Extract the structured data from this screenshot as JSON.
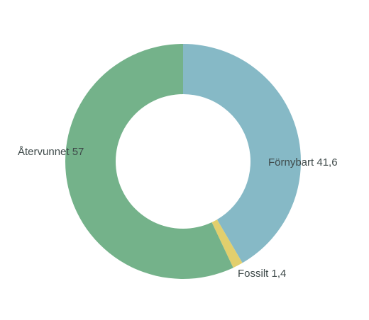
{
  "chart_data": {
    "type": "donut",
    "categories": [
      "Förnybart",
      "Fossilt",
      "Återvunnet"
    ],
    "values": [
      41.6,
      1.4,
      57
    ],
    "value_labels": [
      "41,6",
      "1,4",
      "57"
    ],
    "colors": [
      "#86b9c6",
      "#e2cf6d",
      "#74b28a"
    ]
  }
}
